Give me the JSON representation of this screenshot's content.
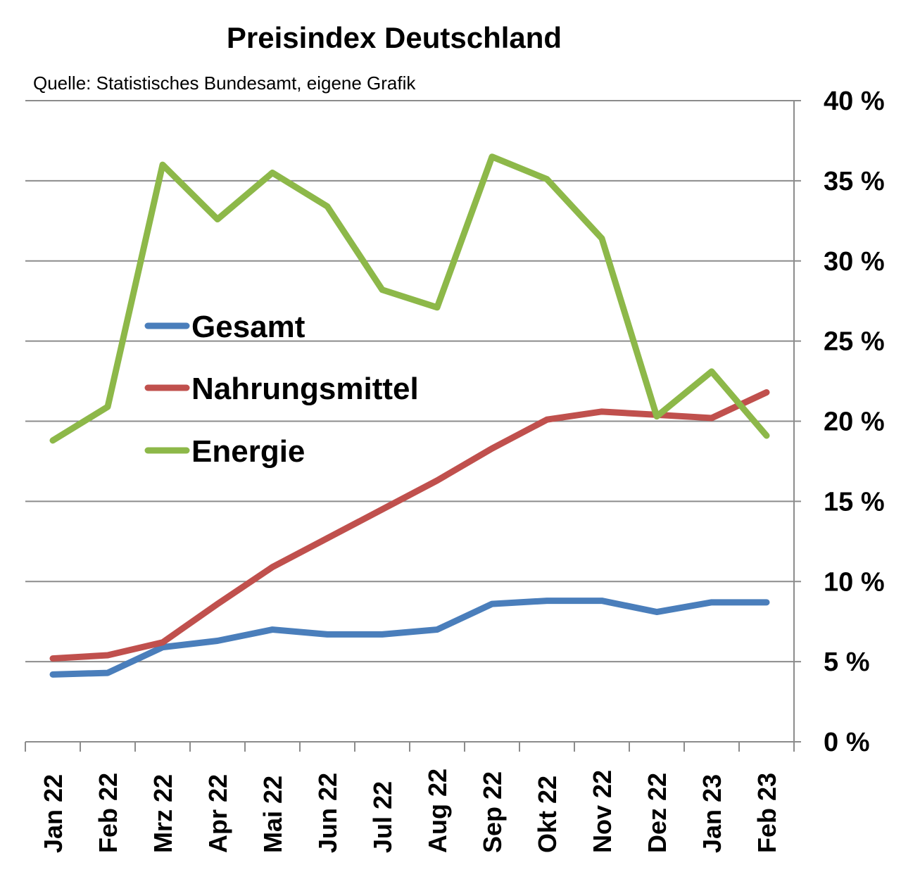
{
  "chart_data": {
    "type": "line",
    "title": "Preisindex Deutschland",
    "subtitle": "Quelle:  Statistisches Bundesamt, eigene Grafik",
    "xlabel": "",
    "ylabel": "",
    "categories": [
      "Jan 22",
      "Feb 22",
      "Mrz 22",
      "Apr 22",
      "Mai 22",
      "Jun 22",
      "Jul 22",
      "Aug 22",
      "Sep 22",
      "Okt 22",
      "Nov 22",
      "Dez 22",
      "Jan 23",
      "Feb 23"
    ],
    "ylim": [
      0,
      40
    ],
    "yticks": [
      0,
      5,
      10,
      15,
      20,
      25,
      30,
      35,
      40
    ],
    "ytick_labels": [
      "0 %",
      "5 %",
      "10 %",
      "15 %",
      "20 %",
      "25 %",
      "30 %",
      "35 %",
      "40 %"
    ],
    "y_axis_position": "right",
    "grid": true,
    "legend_position": "center-left",
    "series": [
      {
        "name": "Gesamt",
        "color": "#4a7ebb",
        "values": [
          4.2,
          4.3,
          5.9,
          6.3,
          7.0,
          6.7,
          6.7,
          7.0,
          8.6,
          8.8,
          8.8,
          8.1,
          8.7,
          8.7
        ]
      },
      {
        "name": "Nahrungsmittel",
        "color": "#c0504d",
        "values": [
          5.2,
          5.4,
          6.2,
          8.6,
          10.9,
          12.7,
          14.5,
          16.3,
          18.3,
          20.1,
          20.6,
          20.4,
          20.2,
          21.8
        ]
      },
      {
        "name": "Energie",
        "color": "#8db849",
        "values": [
          18.8,
          20.9,
          36.0,
          32.6,
          35.5,
          33.4,
          28.2,
          27.1,
          36.5,
          35.1,
          31.4,
          20.3,
          23.1,
          19.1
        ]
      }
    ]
  }
}
